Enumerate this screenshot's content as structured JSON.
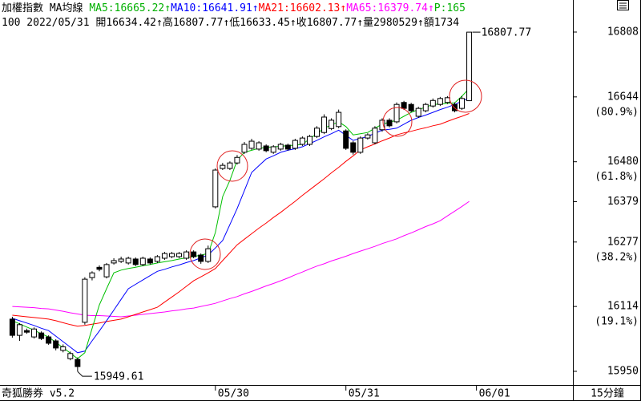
{
  "chart_data": {
    "type": "candlestick",
    "header": [
      [
        {
          "text": "加權指數 MA均線 ",
          "color": "#000000"
        },
        {
          "text": "MA5:16665.22↑",
          "color": "#00b000"
        },
        {
          "text": "MA10:16641.91↑",
          "color": "#0000ff"
        },
        {
          "text": "MA21:16602.13↑",
          "color": "#ff0000"
        },
        {
          "text": "MA65:16379.74↑",
          "color": "#ff00ff"
        },
        {
          "text": "P:165",
          "color": "#00b000"
        }
      ],
      [
        {
          "text": "100 2022/05/31 開16634.42↑高16807.77↑低16633.45↑收16807.77↑量2980529↑額1734",
          "color": "#000000"
        }
      ]
    ],
    "brand": "奇狐勝券 v5.2",
    "period": "15分鐘",
    "xlim": [
      -1.7,
      77.3
    ],
    "xticks": [
      {
        "value": 28,
        "label": "05/30"
      },
      {
        "value": 46,
        "label": "05/31"
      },
      {
        "value": 64,
        "label": "06/01"
      }
    ],
    "ylim": [
      15915.5,
      16889.1
    ],
    "yticks": [
      16808,
      16644,
      16480,
      16379,
      16277,
      16114,
      15950
    ],
    "fib_levels": [
      {
        "value": 16644,
        "label": "(80.9%)"
      },
      {
        "value": 16480,
        "label": "(61.8%)"
      },
      {
        "value": 16277,
        "label": "(38.2%)"
      },
      {
        "value": 16114,
        "label": "(19.1%)"
      }
    ],
    "high_label": "16807.77",
    "low_label": "15949.61",
    "up_fill": "#ffffff",
    "down_fill": "#000000",
    "candle_stroke": "#000000",
    "candles": [
      [
        16082,
        16088,
        16035,
        16041
      ],
      [
        16041,
        16072,
        16027,
        16068
      ],
      [
        16053,
        16058,
        16045,
        16049
      ],
      [
        16037,
        16061,
        16033,
        16057
      ],
      [
        16047,
        16051,
        16029,
        16033
      ],
      [
        16037,
        16041,
        16017,
        16021
      ],
      [
        16027,
        16031,
        16003,
        16009
      ],
      [
        16003,
        16018,
        15998,
        16012
      ],
      [
        15982,
        16000,
        15978,
        15995
      ],
      [
        15980,
        15985,
        15949.61,
        15962
      ],
      [
        16074,
        16188,
        16068,
        16183
      ],
      [
        16187,
        16203,
        16180,
        16199
      ],
      [
        16213,
        16218,
        16203,
        16208
      ],
      [
        16189,
        16224,
        16185,
        16220
      ],
      [
        16224,
        16236,
        16220,
        16230
      ],
      [
        16228,
        16240,
        16224,
        16234
      ],
      [
        16224,
        16240,
        16220,
        16236
      ],
      [
        16234,
        16238,
        16216,
        16220
      ],
      [
        16220,
        16240,
        16216,
        16236
      ],
      [
        16234,
        16238,
        16220,
        16224
      ],
      [
        16228,
        16244,
        16224,
        16240
      ],
      [
        16236,
        16252,
        16232,
        16248
      ],
      [
        16240,
        16252,
        16236,
        16248
      ],
      [
        16240,
        16252,
        16236,
        16248
      ],
      [
        16236,
        16256,
        16232,
        16252
      ],
      [
        16252,
        16256,
        16236,
        16240
      ],
      [
        16244,
        16248,
        16222,
        16228
      ],
      [
        16228,
        16268,
        16224,
        16260
      ],
      [
        16366,
        16463,
        16362,
        16459
      ],
      [
        16463,
        16477,
        16459,
        16471
      ],
      [
        16463,
        16481,
        16459,
        16477
      ],
      [
        16477,
        16497,
        16473,
        16491
      ],
      [
        16504,
        16530,
        16500,
        16524
      ],
      [
        16514,
        16538,
        16510,
        16532
      ],
      [
        16512,
        16532,
        16508,
        16528
      ],
      [
        16520,
        16524,
        16504,
        16508
      ],
      [
        16504,
        16522,
        16500,
        16518
      ],
      [
        16512,
        16528,
        16508,
        16524
      ],
      [
        16522,
        16526,
        16508,
        16512
      ],
      [
        16514,
        16538,
        16510,
        16534
      ],
      [
        16524,
        16544,
        16520,
        16540
      ],
      [
        16524,
        16548,
        16520,
        16544
      ],
      [
        16544,
        16570,
        16540,
        16565
      ],
      [
        16554,
        16600,
        16550,
        16593
      ],
      [
        16564,
        16590,
        16560,
        16585
      ],
      [
        16569,
        16612,
        16565,
        16605
      ],
      [
        16558,
        16562,
        16510,
        16514
      ],
      [
        16528,
        16532,
        16498,
        16504
      ],
      [
        16504,
        16544,
        16500,
        16540
      ],
      [
        16540,
        16552,
        16536,
        16548
      ],
      [
        16528,
        16570,
        16524,
        16565
      ],
      [
        16561,
        16590,
        16556,
        16585
      ],
      [
        16585,
        16590,
        16567,
        16571
      ],
      [
        16581,
        16630,
        16577,
        16625
      ],
      [
        16630,
        16634,
        16611,
        16615
      ],
      [
        16625,
        16629,
        16605,
        16609
      ],
      [
        16595,
        16619,
        16591,
        16615
      ],
      [
        16609,
        16629,
        16605,
        16625
      ],
      [
        16621,
        16640,
        16617,
        16635
      ],
      [
        16625,
        16644,
        16621,
        16640
      ],
      [
        16630,
        16646,
        16626,
        16642
      ],
      [
        16625,
        16630,
        16605,
        16609
      ],
      [
        16615,
        16646,
        16611,
        16640
      ],
      [
        16634.42,
        16807.77,
        16633.45,
        16807.77
      ]
    ],
    "series": [
      {
        "color": "#ff00ff",
        "values": [
          16114,
          16113,
          16112,
          16111,
          16109,
          16108,
          16105,
          16102,
          16098,
          16095,
          16092,
          16091,
          16091,
          16090,
          16089,
          16088,
          16090,
          16092,
          16094,
          16096,
          16098,
          16100,
          16103,
          16105,
          16108,
          16110,
          16114,
          16118,
          16122,
          16128,
          16134,
          16139,
          16146,
          16152,
          16159,
          16166,
          16172,
          16179,
          16186,
          16194,
          16201,
          16209,
          16216,
          16222,
          16229,
          16235,
          16241,
          16248,
          16254,
          16260,
          16266,
          16273,
          16279,
          16285,
          16293,
          16300,
          16308,
          16316,
          16323,
          16331,
          16343,
          16355,
          16367,
          16379.74
        ]
      },
      {
        "color": "#ff0000",
        "values": [
          16092,
          16090,
          16088,
          16086,
          16084,
          16082,
          16078,
          16073,
          16068,
          16064,
          16066,
          16069,
          16072,
          16076,
          16079,
          16082,
          16088,
          16094,
          16100,
          16106,
          16112,
          16125,
          16138,
          16151,
          16165,
          16179,
          16189,
          16199,
          16210,
          16230,
          16250,
          16270,
          16284,
          16298,
          16312,
          16325,
          16339,
          16352,
          16366,
          16380,
          16395,
          16409,
          16423,
          16437,
          16452,
          16466,
          16481,
          16495,
          16510,
          16518,
          16525,
          16533,
          16540,
          16548,
          16553,
          16557,
          16562,
          16566,
          16571,
          16575,
          16582,
          16589,
          16595,
          16602.13
        ]
      },
      {
        "color": "#0000ff",
        "values": [
          16084,
          16078,
          16072,
          16066,
          16059,
          16053,
          16039,
          16025,
          16011,
          15997,
          16001,
          16027,
          16052,
          16078,
          16105,
          16132,
          16159,
          16170,
          16181,
          16192,
          16203,
          16208,
          16214,
          16219,
          16225,
          16230,
          16237,
          16244,
          16262,
          16281,
          16321,
          16362,
          16407,
          16453,
          16470,
          16487,
          16495,
          16504,
          16509,
          16513,
          16518,
          16526,
          16534,
          16543,
          16551,
          16560,
          16547,
          16534,
          16539,
          16544,
          16552,
          16560,
          16562,
          16565,
          16575,
          16585,
          16592,
          16598,
          16605,
          16612,
          16618,
          16625,
          16633,
          16641.91
        ]
      },
      {
        "color": "#00c000",
        "values": [
          16078,
          16070,
          16062,
          16054,
          16045,
          16037,
          16023,
          16010,
          15996,
          15982,
          15997,
          16058,
          16118,
          16159,
          16199,
          16206,
          16210,
          16213,
          16217,
          16220,
          16224,
          16227,
          16230,
          16234,
          16237,
          16240,
          16244,
          16248,
          16301,
          16392,
          16433,
          16484,
          16504,
          16509,
          16514,
          16516,
          16518,
          16519,
          16521,
          16522,
          16524,
          16538,
          16551,
          16565,
          16573,
          16581,
          16569,
          16548,
          16551,
          16554,
          16565,
          16575,
          16580,
          16585,
          16595,
          16605,
          16612,
          16618,
          16625,
          16626,
          16628,
          16629,
          16646,
          16665.22
        ]
      }
    ]
  }
}
